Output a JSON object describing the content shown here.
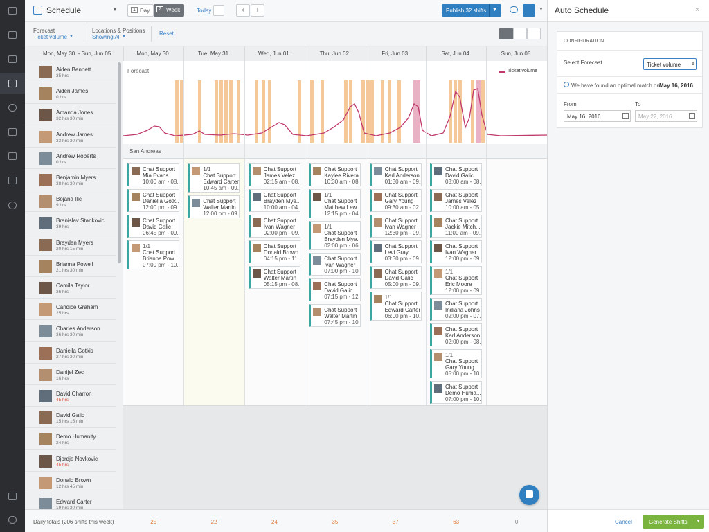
{
  "header": {
    "title": "Schedule",
    "day_icon": "1",
    "day": "Day",
    "week_icon": "7",
    "week": "Week",
    "today": "Today",
    "publish": "Publish 32 shifts"
  },
  "filters": {
    "forecast_label": "Forecast",
    "forecast_value": "Ticket volume",
    "locations_label": "Locations & Positions",
    "locations_value": "Showing All",
    "reset": "Reset"
  },
  "week": {
    "range": "Mon, May 30. - Sun, Jun 05.",
    "days": [
      "Mon, May 30.",
      "Tue, May 31.",
      "Wed, Jun 01.",
      "Thu, Jun 02.",
      "Fri, Jun 03.",
      "Sat, Jun 04.",
      "Sun, Jun 05."
    ]
  },
  "employees": [
    {
      "name": "Aiden Bennett",
      "hours": "35 hrs"
    },
    {
      "name": "Aiden James",
      "hours": "0 hrs"
    },
    {
      "name": "Amanda Jones",
      "hours": "32 hrs 30 min"
    },
    {
      "name": "Andrew James",
      "hours": "33 hrs 30 min"
    },
    {
      "name": "Andrew Roberts",
      "hours": "0 hrs"
    },
    {
      "name": "Benjamin Myers",
      "hours": "38 hrs 30 min"
    },
    {
      "name": "Bojana Ilic",
      "hours": "9 hrs"
    },
    {
      "name": "Branislav Stankovic",
      "hours": "39 hrs"
    },
    {
      "name": "Brayden Myers",
      "hours": "20 hrs 15 min"
    },
    {
      "name": "Brianna Powell",
      "hours": "21 hrs 30 min"
    },
    {
      "name": "Camila Taylor",
      "hours": "36 hrs"
    },
    {
      "name": "Candice Graham",
      "hours": "25 hrs"
    },
    {
      "name": "Charles Anderson",
      "hours": "36 hrs 30 min"
    },
    {
      "name": "Daniella Gotkis",
      "hours": "27 hrs 30 min"
    },
    {
      "name": "Danijel Zec",
      "hours": "16 hrs"
    },
    {
      "name": "David Charron",
      "hours": "45 hrs",
      "hours_color": "#e0533c"
    },
    {
      "name": "David Galic",
      "hours": "15 hrs 15 min"
    },
    {
      "name": "Demo Humanity",
      "hours": "24 hrs"
    },
    {
      "name": "Djordje Novkovic",
      "hours": "45 hrs",
      "hours_color": "#e0533c"
    },
    {
      "name": "Donald Brown",
      "hours": "12 hrs 45 min"
    },
    {
      "name": "Edward Carter",
      "hours": "19 hrs 30 min"
    }
  ],
  "forecast": {
    "title": "Forecast",
    "legend": "Ticket volume"
  },
  "location": "San Andreas",
  "shifts": [
    [
      {
        "position": "Chat Support",
        "name": "Mia Evans",
        "time": "10:00 am - 08..."
      },
      {
        "position": "Chat Support",
        "name": "Daniella Gotk...",
        "time": "12:00 pm - 09..."
      },
      {
        "position": "Chat Support",
        "name": "David Galic",
        "time": "06:45 pm - 09..."
      },
      {
        "count": "1/1",
        "position": "Chat Support",
        "name": "Brianna Pow...",
        "time": "07:00 pm - 10..."
      }
    ],
    [
      {
        "count": "1/1",
        "position": "Chat Support",
        "name": "Edward Carter",
        "time": "10:45 am - 09..."
      },
      {
        "position": "Chat Support",
        "name": "Walter Martin",
        "time": "12:00 pm - 09..."
      }
    ],
    [
      {
        "position": "Chat Support",
        "name": "James Velez",
        "time": "02:15 am - 08..."
      },
      {
        "position": "Chat Support",
        "name": "Brayden Mye...",
        "time": "10:00 am - 04..."
      },
      {
        "position": "Chat Support",
        "name": "Ivan Wagner",
        "time": "02:00 pm - 09..."
      },
      {
        "position": "Chat Support",
        "name": "Donald Brown",
        "time": "04:15 pm - 11..."
      },
      {
        "position": "Chat Support",
        "name": "Walter Martin",
        "time": "05:15 pm - 08..."
      }
    ],
    [
      {
        "position": "Chat Support",
        "name": "Kaylee Rivera",
        "time": "10:30 am - 08..."
      },
      {
        "count": "1/1",
        "position": "Chat Support",
        "name": "Matthew Lew...",
        "time": "12:15 pm - 04..."
      },
      {
        "count": "1/1",
        "position": "Chat Support",
        "name": "Brayden Mye...",
        "time": "02:00 pm - 06..."
      },
      {
        "position": "Chat Support",
        "name": "Ivan Wagner",
        "time": "07:00 pm - 10..."
      },
      {
        "position": "Chat Support",
        "name": "David Galic",
        "time": "07:15 pm - 12..."
      },
      {
        "position": "Chat Support",
        "name": "Walter Martin",
        "time": "07:45 pm - 10..."
      }
    ],
    [
      {
        "position": "Chat Support",
        "name": "Karl Anderson",
        "time": "01:30 am - 09..."
      },
      {
        "position": "Chat Support",
        "name": "Gary Young",
        "time": "09:30 am - 02..."
      },
      {
        "position": "Chat Support",
        "name": "Ivan Wagner",
        "time": "12:30 pm - 09..."
      },
      {
        "position": "Chat Support",
        "name": "Levi Gray",
        "time": "03:30 pm - 09..."
      },
      {
        "position": "Chat Support",
        "name": "David Galic",
        "time": "05:00 pm - 09..."
      },
      {
        "count": "1/1",
        "position": "Chat Support",
        "name": "Edward Carter",
        "time": "06:00 pm - 10..."
      }
    ],
    [
      {
        "position": "Chat Support",
        "name": "David Galic",
        "time": "03:00 am - 08..."
      },
      {
        "position": "Chat Support",
        "name": "James Velez",
        "time": "10:00 am - 05..."
      },
      {
        "position": "Chat Support",
        "name": "Jackie Mitch...",
        "time": "11:00 am - 09..."
      },
      {
        "position": "Chat Support",
        "name": "Ivan Wagner",
        "time": "12:00 pm - 09..."
      },
      {
        "count": "1/1",
        "position": "Chat Support",
        "name": "Eric Moore",
        "time": "12:00 pm - 09..."
      },
      {
        "position": "Chat Support",
        "name": "Indiana Johns",
        "time": "02:00 pm - 07..."
      },
      {
        "position": "Chat Support",
        "name": "Karl Anderson",
        "time": "02:00 pm - 08..."
      },
      {
        "count": "1/1",
        "position": "Chat Support",
        "name": "Gary Young",
        "time": "05:00 pm - 10..."
      },
      {
        "position": "Chat Support",
        "name": "Demo Huma...",
        "time": "07:00 pm - 10..."
      }
    ],
    []
  ],
  "totals": {
    "label": "Daily totals (206 shifts this week)",
    "values": [
      25,
      22,
      24,
      35,
      37,
      63,
      0
    ]
  },
  "panel": {
    "title": "Auto Schedule",
    "close": "×",
    "section": "CONFIGURATION",
    "select_label": "Select Forecast",
    "select_value": "Ticket volume",
    "info": "We have found an optimal match on :",
    "info_date": "May 16, 2016",
    "from_label": "From",
    "to_label": "To",
    "from_value": "May 16, 2016",
    "to_value": "May 22, 2016",
    "cancel": "Cancel",
    "generate": "Generate Shifts"
  }
}
